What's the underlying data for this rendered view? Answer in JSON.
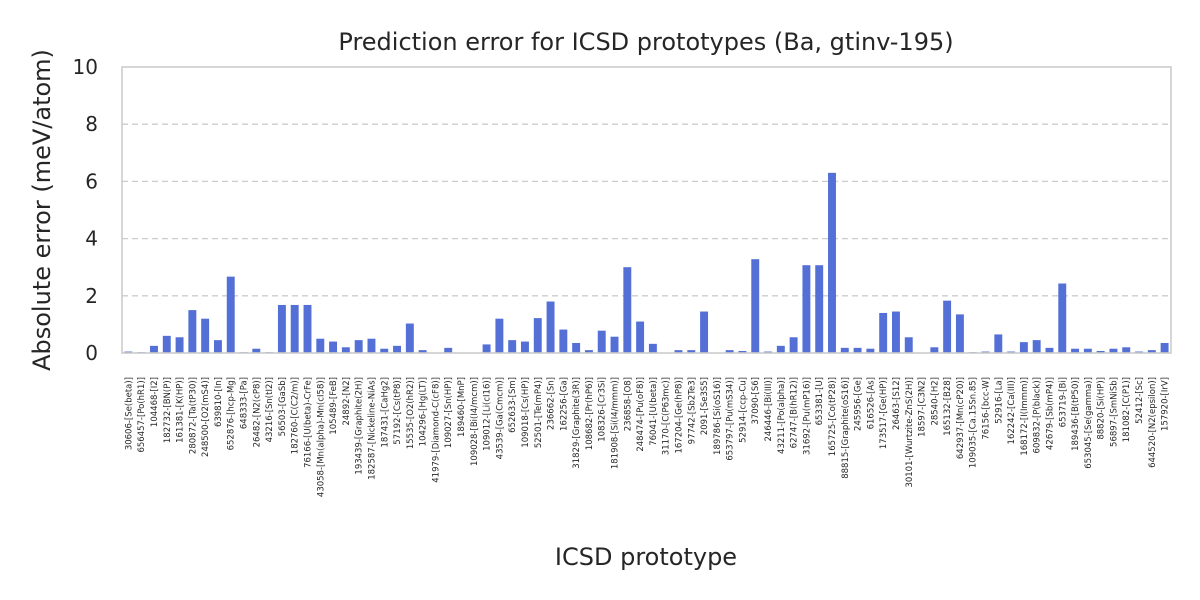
{
  "chart_data": {
    "type": "bar",
    "title": "Prediction error for ICSD prototypes (Ba, gtinv-195)",
    "xlabel": "ICSD prototype",
    "ylabel": "Absolute error (meV/atom)",
    "ylim": [
      0,
      10
    ],
    "yticks": [
      0,
      2,
      4,
      6,
      8,
      10
    ],
    "grid": "y-dashed",
    "bar_color": "#5470d6",
    "categories": [
      "30606-[Se(beta)]",
      "656457-[Po(hR1)]",
      "104468-[I2]",
      "182732-[BN(P)]",
      "161381-[K(HP)]",
      "280872-[Ta(tP30)]",
      "248500-[O2(mS4)]",
      "639810-[In]",
      "652876-[hcp-Mg]",
      "648333-[Pa]",
      "26482-[N2(cP8)]",
      "43216-[Sn(tI2)]",
      "56503-[GaSb]",
      "182760-[C(C2/m)]",
      "76166-[U(beta)-CrFe]",
      "43058-[Mn(alpha)-Mn(cI58)]",
      "105489-[FeB]",
      "24892-[N2]",
      "193439-[Graphite(2H)]",
      "182587-[Nickeline-NiAs]",
      "187431-[CaHg2]",
      "57192-[Cs(tP8)]",
      "15535-[O2(hR2)]",
      "104296-[Hg(LT)]",
      "41979-[Diamond-C(cF8)]",
      "109027-[Sn(HP)]",
      "189460-[MnP]",
      "109028-[Bi(I4/mcm)]",
      "109012-[Li(cI16)]",
      "43539-[Ga(Cmcm)]",
      "652633-[Sm]",
      "109018-[Cs(HP)]",
      "52501-[Te(mP4)]",
      "236662-[Sn]",
      "162256-[Ga]",
      "31829-[Graphite(3R)]",
      "108682-[Pr(hP6)]",
      "108326-[Cr3Si]",
      "181908-[Si(I4/mmm)]",
      "236858-[O8]",
      "248474-[Pu(oF8)]",
      "76041-[U(beta)]",
      "31170-[C(P63mc)]",
      "167204-[Ge(hP8)]",
      "97742-[Sb2Te3]",
      "2091-[Se3S5]",
      "189786-[Si(oS16)]",
      "653797-[Pu(mS34)]",
      "52914-[ccp-Cu]",
      "37090-[S6]",
      "246446-[Bi(III)]",
      "43211-[Po(alpha)]",
      "62747-[B(hR12)]",
      "31692-[Pu(mP16)]",
      "653381-[U]",
      "165725-[Co(tP28)]",
      "88815-[Graphite(oS16)]",
      "245956-[Ge]",
      "616526-[As]",
      "173517-[Ge(HP)]",
      "26463-[S12]",
      "30101-[Wurtzite-ZnS(2H)]",
      "18597-[C3N2]",
      "28540-[H2]",
      "165132-[B28]",
      "642937-[Mn(cP20)]",
      "109035-[Ca.15Sn.85]",
      "76156-[bcc-W]",
      "52916-[La]",
      "162242-[Ca(III)]",
      "168172-[I(Immm)]",
      "609832-[P(black)]",
      "42679-[Sb(mP4)]",
      "653719-[Bi]",
      "189436-[B(tP50)]",
      "653045-[Se(gamma)]",
      "88820-[Si(HP)]",
      "56897-[SmNiSb]",
      "181082-[C(P1)]",
      "52412-[Sc]",
      "644520-[N2(epsilon)]",
      "157920-[IrV]"
    ],
    "values": [
      0.05,
      0.03,
      0.25,
      0.6,
      0.55,
      1.5,
      1.2,
      0.45,
      2.67,
      0.03,
      0.15,
      0.03,
      1.68,
      1.68,
      1.68,
      0.5,
      0.4,
      0.2,
      0.45,
      0.5,
      0.15,
      0.25,
      1.03,
      0.1,
      0.0,
      0.18,
      0.0,
      0.0,
      0.3,
      1.2,
      0.45,
      0.4,
      1.22,
      1.8,
      0.82,
      0.35,
      0.1,
      0.78,
      0.57,
      3.0,
      1.1,
      0.32,
      0.0,
      0.1,
      0.1,
      1.45,
      0.0,
      0.1,
      0.07,
      3.28,
      0.05,
      0.25,
      0.55,
      3.07,
      3.07,
      6.3,
      0.18,
      0.18,
      0.15,
      1.4,
      1.45,
      0.55,
      0.0,
      0.2,
      1.83,
      1.35,
      0.03,
      0.05,
      0.65,
      0.05,
      0.38,
      0.45,
      0.18,
      2.43,
      0.15,
      0.15,
      0.07,
      0.15,
      0.2,
      0.05,
      0.1,
      0.35
    ]
  }
}
